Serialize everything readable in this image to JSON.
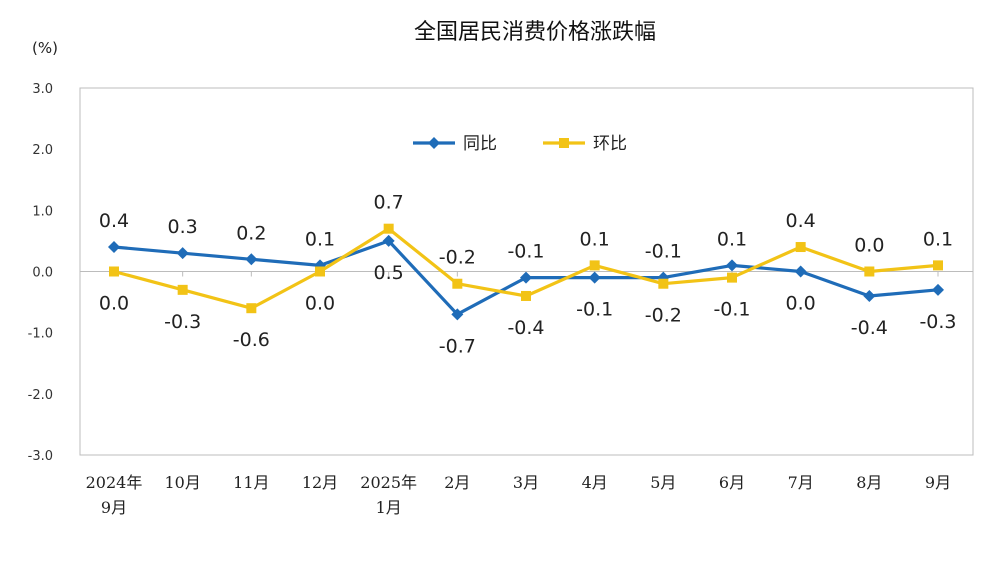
{
  "chart_data": {
    "type": "line",
    "title": "全国居民消费价格涨跌幅",
    "unit_label": "(%)",
    "ylim": [
      -3.0,
      3.0
    ],
    "yticks": [
      "3.0",
      "2.0",
      "1.0",
      "0.0",
      "-1.0",
      "-2.0",
      "-3.0"
    ],
    "ytick_values": [
      3,
      2,
      1,
      0,
      -1,
      -2,
      -3
    ],
    "categories": [
      [
        "2024年",
        "9月"
      ],
      [
        "10月"
      ],
      [
        "11月"
      ],
      [
        "12月"
      ],
      [
        "2025年",
        "1月"
      ],
      [
        "2月"
      ],
      [
        "3月"
      ],
      [
        "4月"
      ],
      [
        "5月"
      ],
      [
        "6月"
      ],
      [
        "7月"
      ],
      [
        "8月"
      ],
      [
        "9月"
      ]
    ],
    "legend_position": "top-center",
    "grid": false,
    "series": [
      {
        "name": "同比",
        "color": "#1f6cb8",
        "marker": "diamond",
        "values": [
          0.4,
          0.3,
          0.2,
          0.1,
          0.5,
          -0.7,
          -0.1,
          -0.1,
          -0.1,
          0.1,
          0.0,
          -0.4,
          -0.3
        ],
        "labels": [
          "0.4",
          "0.3",
          "0.2",
          "0.1",
          "0.5",
          "-0.7",
          "-0.1",
          "-0.1",
          "-0.1",
          "0.1",
          "0.0",
          "-0.4",
          "-0.3"
        ]
      },
      {
        "name": "环比",
        "color": "#f2c316",
        "marker": "square",
        "values": [
          0.0,
          -0.3,
          -0.6,
          0.0,
          0.7,
          -0.2,
          -0.4,
          0.1,
          -0.2,
          -0.1,
          0.4,
          0.0,
          0.1
        ],
        "labels": [
          "0.0",
          "-0.3",
          "-0.6",
          "0.0",
          "0.7",
          "-0.2",
          "-0.4",
          "0.1",
          "-0.2",
          "-0.1",
          "0.4",
          "0.0",
          "0.1"
        ]
      }
    ]
  }
}
